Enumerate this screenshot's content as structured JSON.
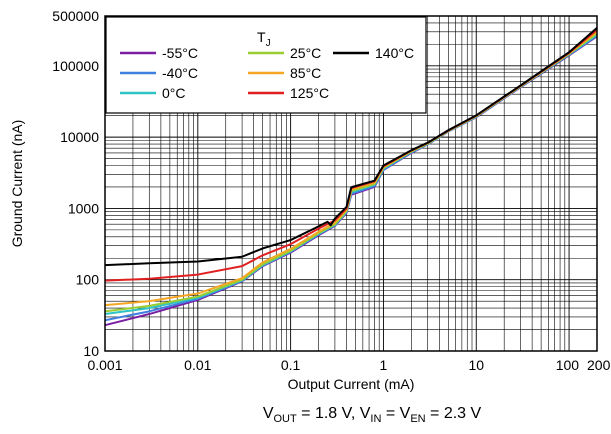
{
  "chart_data": {
    "type": "line",
    "x_scale": "log",
    "y_scale": "log",
    "xlim": [
      0.001,
      200
    ],
    "ylim": [
      10,
      500000
    ],
    "grid": true,
    "xlabel": "Output Current (mA)",
    "ylabel": "Ground Current (nA)",
    "x_ticks": [
      {
        "value": 0.001,
        "label": "0.001"
      },
      {
        "value": 0.01,
        "label": "0.01"
      },
      {
        "value": 0.1,
        "label": "0.1"
      },
      {
        "value": 1,
        "label": "1"
      },
      {
        "value": 10,
        "label": "10"
      },
      {
        "value": 100,
        "label": "100"
      },
      {
        "value": 200,
        "label": "200"
      }
    ],
    "y_ticks": [
      {
        "value": 10,
        "label": "10"
      },
      {
        "value": 100,
        "label": "100"
      },
      {
        "value": 1000,
        "label": "1000"
      },
      {
        "value": 10000,
        "label": "10000"
      },
      {
        "value": 100000,
        "label": "100000"
      },
      {
        "value": 500000,
        "label": "500000"
      }
    ],
    "legend": {
      "title_main": "T",
      "title_sub": "J",
      "placement": "top-left"
    },
    "caption": {
      "p1": "V",
      "s1": "OUT",
      "p2": " = 1.8 V, V",
      "s2": "IN",
      "p3": " = V",
      "s3": "EN",
      "p4": " = 2.3 V"
    },
    "series": [
      {
        "name": "-55°C",
        "color": "#7b1fa2",
        "x": [
          0.001,
          0.003,
          0.01,
          0.03,
          0.05,
          0.1,
          0.2,
          0.3,
          0.4,
          0.45,
          0.8,
          1,
          2,
          3,
          5,
          10,
          30,
          100,
          200
        ],
        "y": [
          23,
          33,
          52,
          95,
          155,
          240,
          420,
          570,
          860,
          1550,
          2000,
          3450,
          6000,
          7900,
          12000,
          19000,
          50000,
          140000,
          260000
        ]
      },
      {
        "name": "-40°C",
        "color": "#3f7fe0",
        "x": [
          0.001,
          0.003,
          0.01,
          0.03,
          0.05,
          0.1,
          0.2,
          0.3,
          0.4,
          0.45,
          0.8,
          1,
          2,
          3,
          5,
          10,
          30,
          100,
          200
        ],
        "y": [
          27,
          36,
          54,
          96,
          158,
          245,
          430,
          580,
          880,
          1600,
          2050,
          3500,
          6100,
          7950,
          12000,
          19200,
          50500,
          142000,
          265000
        ]
      },
      {
        "name": "0°C",
        "color": "#2ec4c4",
        "x": [
          0.001,
          0.003,
          0.01,
          0.03,
          0.05,
          0.1,
          0.2,
          0.3,
          0.4,
          0.45,
          0.8,
          1,
          2,
          3,
          5,
          10,
          30,
          100,
          200
        ],
        "y": [
          33,
          40,
          56,
          98,
          160,
          250,
          440,
          590,
          900,
          1680,
          2150,
          3600,
          6200,
          8000,
          12100,
          19400,
          51000,
          145000,
          275000
        ]
      },
      {
        "name": "25°C",
        "color": "#9acd32",
        "x": [
          0.001,
          0.003,
          0.01,
          0.03,
          0.05,
          0.1,
          0.2,
          0.3,
          0.4,
          0.45,
          0.8,
          1,
          2,
          3,
          5,
          10,
          30,
          100,
          200
        ],
        "y": [
          36,
          43,
          58,
          100,
          165,
          255,
          450,
          600,
          920,
          1750,
          2200,
          3700,
          6300,
          8100,
          12200,
          19600,
          51500,
          147000,
          285000
        ]
      },
      {
        "name": "85°C",
        "color": "#f5a623",
        "x": [
          0.001,
          0.003,
          0.01,
          0.03,
          0.05,
          0.1,
          0.2,
          0.3,
          0.4,
          0.45,
          0.8,
          1,
          2,
          3,
          5,
          10,
          30,
          100,
          200
        ],
        "y": [
          44,
          50,
          64,
          105,
          175,
          270,
          470,
          630,
          960,
          1850,
          2300,
          3800,
          6400,
          8200,
          12300,
          19800,
          52000,
          150000,
          300000
        ]
      },
      {
        "name": "125°C",
        "color": "#e02020",
        "x": [
          0.001,
          0.003,
          0.01,
          0.03,
          0.05,
          0.1,
          0.2,
          0.3,
          0.4,
          0.45,
          0.8,
          1,
          2,
          3,
          5,
          10,
          30,
          100,
          200
        ],
        "y": [
          97,
          103,
          118,
          155,
          220,
          315,
          520,
          680,
          1000,
          1920,
          2400,
          3900,
          6500,
          8300,
          12400,
          20000,
          52500,
          152000,
          320000
        ]
      },
      {
        "name": "140°C",
        "color": "#000000",
        "x": [
          0.001,
          0.003,
          0.01,
          0.03,
          0.05,
          0.1,
          0.2,
          0.25,
          0.27,
          0.3,
          0.4,
          0.45,
          0.8,
          1,
          2,
          3,
          5,
          10,
          30,
          100,
          200
        ],
        "y": [
          160,
          170,
          180,
          210,
          275,
          360,
          560,
          650,
          580,
          720,
          1050,
          1980,
          2450,
          4000,
          6550,
          8350,
          12500,
          20200,
          53000,
          155000,
          340000
        ]
      }
    ]
  }
}
